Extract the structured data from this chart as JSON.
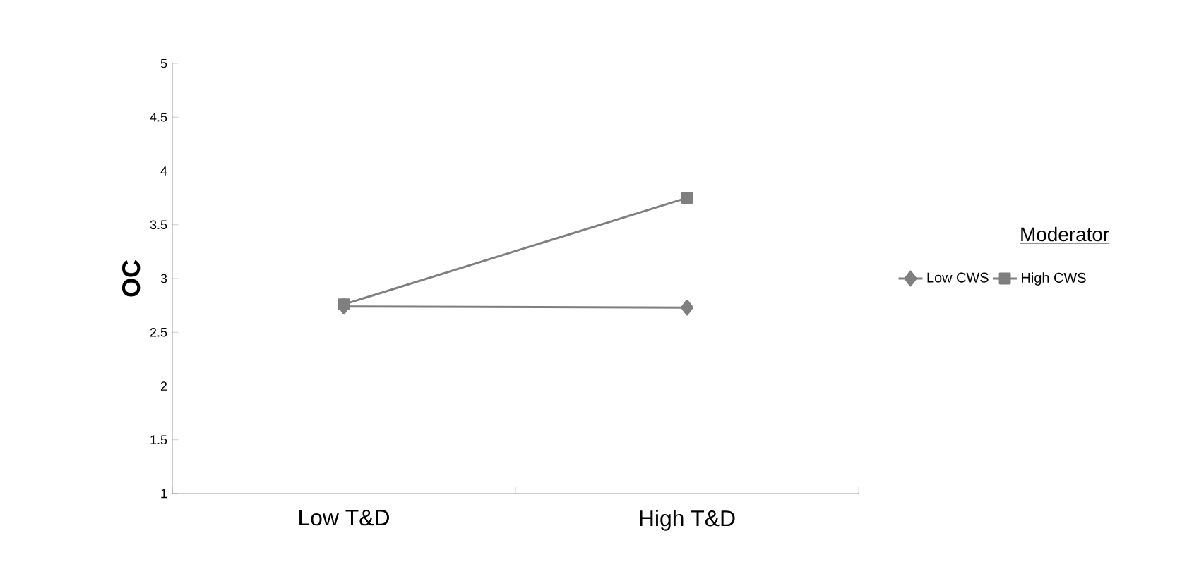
{
  "chart_data": {
    "type": "line",
    "ylabel": "OC",
    "legend_title": "Moderator",
    "categories": [
      "Low T&D",
      "High T&D"
    ],
    "series": [
      {
        "name": "Low CWS",
        "color": "#7f7f7f",
        "marker": "diamond",
        "values": [
          2.74,
          2.73
        ]
      },
      {
        "name": "High CWS",
        "color": "#7f7f7f",
        "marker": "square",
        "values": [
          2.76,
          3.75
        ]
      }
    ],
    "ylim": [
      1,
      5
    ],
    "yticks": [
      1,
      1.5,
      2,
      2.5,
      3,
      3.5,
      4,
      4.5,
      5
    ],
    "legend": "right",
    "grid": false
  }
}
